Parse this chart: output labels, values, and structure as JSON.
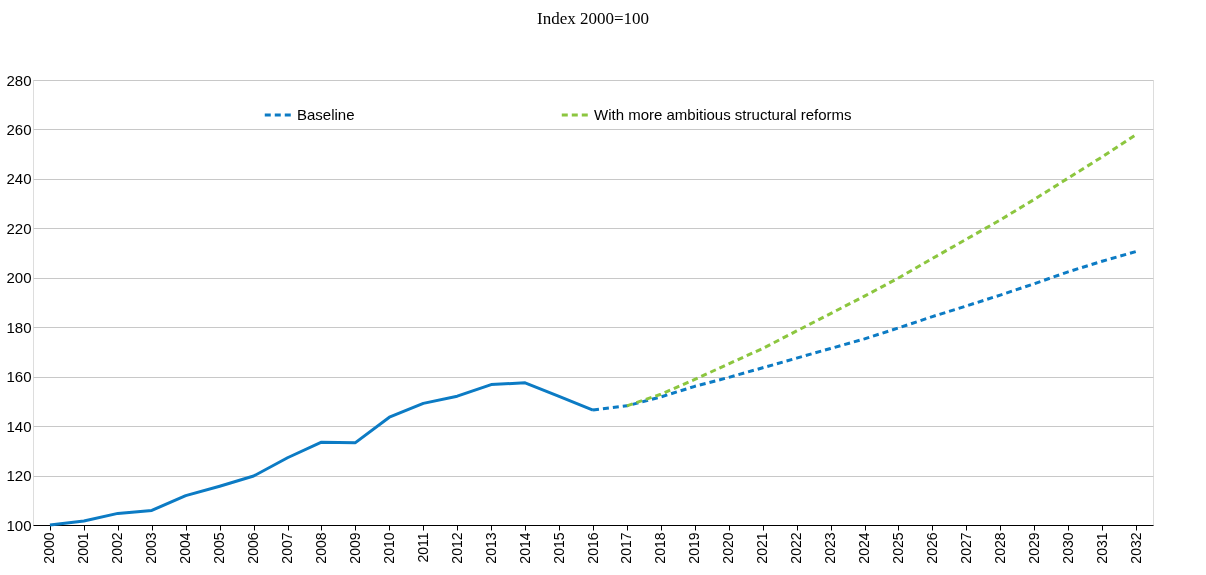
{
  "chart_data": {
    "type": "line",
    "title": "Index 2000=100",
    "categories": [
      "2000",
      "2001",
      "2002",
      "2003",
      "2004",
      "2005",
      "2006",
      "2007",
      "2008",
      "2009",
      "2010",
      "2011",
      "2012",
      "2013",
      "2014",
      "2015",
      "2016",
      "2017",
      "2018",
      "2019",
      "2020",
      "2021",
      "2022",
      "2023",
      "2024",
      "2025",
      "2026",
      "2027",
      "2028",
      "2029",
      "2030",
      "2031",
      "2032"
    ],
    "series": [
      {
        "color": "#0c7bc4",
        "line_style": "solid",
        "values": [
          100,
          101.6,
          104.7,
          105.9,
          111.9,
          115.7,
          119.8,
          127.2,
          133.5,
          133.3,
          143.6,
          149.2,
          152.1,
          156.8,
          157.5,
          152,
          146.5,
          null,
          null,
          null,
          null,
          null,
          null,
          null,
          null,
          null,
          null,
          null,
          null,
          null,
          null,
          null,
          null
        ]
      },
      {
        "name": "Baseline",
        "color": "#0c7bc4",
        "line_style": "dashed",
        "values": [
          null,
          null,
          null,
          null,
          null,
          null,
          null,
          null,
          null,
          null,
          null,
          null,
          null,
          null,
          null,
          null,
          146.5,
          148.2,
          151.8,
          156.1,
          159.7,
          163.6,
          167.5,
          171.4,
          175.3,
          179.7,
          184.3,
          188.6,
          193.0,
          197.6,
          202.4,
          206.7,
          210.6
        ]
      },
      {
        "name": "With more ambitious structural reforms",
        "color": "#8cc63f",
        "line_style": "dashed",
        "values": [
          null,
          null,
          null,
          null,
          null,
          null,
          null,
          null,
          null,
          null,
          null,
          null,
          null,
          null,
          null,
          null,
          null,
          148.2,
          152.9,
          158.9,
          165.2,
          171.4,
          178.5,
          185.5,
          192.6,
          199.9,
          207.8,
          215.6,
          223.4,
          231.7,
          240.3,
          248.9,
          257.9
        ]
      }
    ],
    "ylim": [
      100,
      280
    ],
    "yticks": [
      100,
      120,
      140,
      160,
      180,
      200,
      220,
      240,
      260,
      280
    ],
    "grid": "y",
    "legend": "top",
    "marker": "none"
  }
}
